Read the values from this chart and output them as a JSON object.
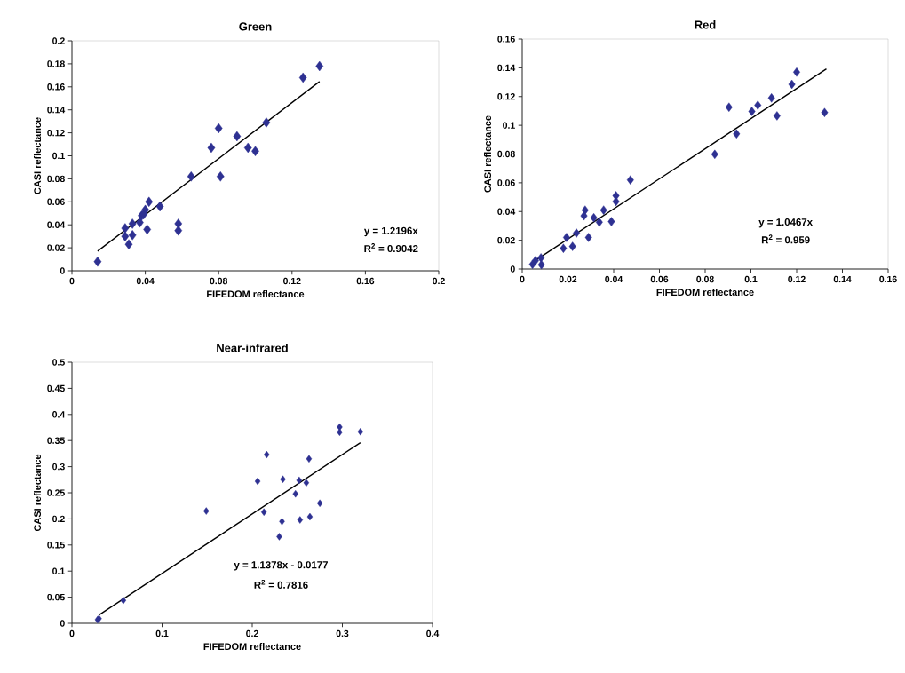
{
  "chart_data": [
    {
      "type": "scatter",
      "title": "Green",
      "xlabel": "FIFEDOM reflectance",
      "ylabel": "CASI reflectance",
      "marker": "diamond",
      "grid": false,
      "xlim": [
        0,
        0.2
      ],
      "ylim": [
        0,
        0.2
      ],
      "xticks": [
        0,
        0.04,
        0.08,
        0.12,
        0.16,
        0.2
      ],
      "yticks": [
        0,
        0.02,
        0.04,
        0.06,
        0.08,
        0.1,
        0.12,
        0.14,
        0.16,
        0.18,
        0.2
      ],
      "annotations": [
        "y = 1.2196x",
        "R$^{2}$ = 0.9042"
      ],
      "series": [
        {
          "color": "#2e3192",
          "x": [
            0.014,
            0.029,
            0.029,
            0.031,
            0.033,
            0.033,
            0.037,
            0.038,
            0.04,
            0.039,
            0.042,
            0.041,
            0.048,
            0.058,
            0.058,
            0.065,
            0.076,
            0.08,
            0.081,
            0.09,
            0.096,
            0.1,
            0.106,
            0.126,
            0.135
          ],
          "values": [
            0.008,
            0.037,
            0.03,
            0.023,
            0.031,
            0.041,
            0.042,
            0.048,
            0.053,
            0.049,
            0.06,
            0.036,
            0.056,
            0.041,
            0.035,
            0.082,
            0.107,
            0.124,
            0.082,
            0.117,
            0.107,
            0.104,
            0.129,
            0.168,
            0.178
          ]
        },
        {
          "type": "line",
          "color": "#000000",
          "marker": "none",
          "x": [
            0.014,
            0.135
          ],
          "values": [
            0.0171,
            0.1646
          ]
        }
      ]
    },
    {
      "type": "scatter",
      "title": "Red",
      "xlabel": "FIFEDOM reflectance",
      "ylabel": "CASI reflectance",
      "marker": "diamond",
      "grid": false,
      "xlim": [
        0,
        0.16
      ],
      "ylim": [
        0,
        0.16
      ],
      "xticks": [
        0,
        0.02,
        0.04,
        0.06,
        0.08,
        0.1,
        0.12,
        0.14,
        0.16
      ],
      "yticks": [
        0,
        0.02,
        0.04,
        0.06,
        0.08,
        0.1,
        0.12,
        0.14,
        0.16
      ],
      "annotations": [
        "y = 1.0467x",
        "R$^{2}$ = 0.959"
      ],
      "series": [
        {
          "color": "#2e3192",
          "x": [
            0.0045,
            0.0058,
            0.0082,
            0.0084,
            0.018,
            0.0194,
            0.022,
            0.0237,
            0.0275,
            0.027,
            0.029,
            0.0313,
            0.0337,
            0.0356,
            0.039,
            0.041,
            0.041,
            0.0473,
            0.0842,
            0.0904,
            0.0937,
            0.1004,
            0.103,
            0.109,
            0.1114,
            0.1179,
            0.12,
            0.1322
          ],
          "values": [
            0.0033,
            0.0058,
            0.0078,
            0.003,
            0.0144,
            0.022,
            0.0157,
            0.025,
            0.041,
            0.037,
            0.022,
            0.0357,
            0.0326,
            0.041,
            0.033,
            0.051,
            0.047,
            0.062,
            0.0798,
            0.1126,
            0.094,
            0.1097,
            0.114,
            0.119,
            0.1066,
            0.1285,
            0.137,
            0.1089
          ]
        },
        {
          "type": "line",
          "color": "#000000",
          "marker": "none",
          "x": [
            0.005,
            0.133
          ],
          "values": [
            0.0052,
            0.1392
          ]
        }
      ]
    },
    {
      "type": "scatter",
      "title": "Near-infrared",
      "xlabel": "FIFEDOM reflectance",
      "ylabel": "CASI reflectance",
      "marker": "diamond",
      "grid": false,
      "xlim": [
        0,
        0.4
      ],
      "ylim": [
        0,
        0.5
      ],
      "xticks": [
        0,
        0.1,
        0.2,
        0.3,
        0.4
      ],
      "yticks": [
        0,
        0.05,
        0.1,
        0.15,
        0.2,
        0.25,
        0.3,
        0.35,
        0.4,
        0.45,
        0.5
      ],
      "annotations": [
        "y = 1.1378x - 0.0177",
        "R$^{2}$ = 0.7816"
      ],
      "series": [
        {
          "color": "#2e3192",
          "x": [
            0.0285,
            0.03,
            0.057,
            0.149,
            0.206,
            0.213,
            0.216,
            0.23,
            0.233,
            0.234,
            0.248,
            0.252,
            0.253,
            0.26,
            0.263,
            0.264,
            0.275,
            0.297,
            0.297,
            0.32
          ],
          "values": [
            0.007,
            0.009,
            0.044,
            0.215,
            0.272,
            0.213,
            0.323,
            0.166,
            0.195,
            0.276,
            0.248,
            0.274,
            0.198,
            0.269,
            0.315,
            0.204,
            0.23,
            0.376,
            0.366,
            0.367
          ]
        },
        {
          "type": "line",
          "color": "#000000",
          "marker": "none",
          "x": [
            0.03,
            0.32
          ],
          "values": [
            0.016,
            0.346
          ]
        }
      ]
    }
  ]
}
